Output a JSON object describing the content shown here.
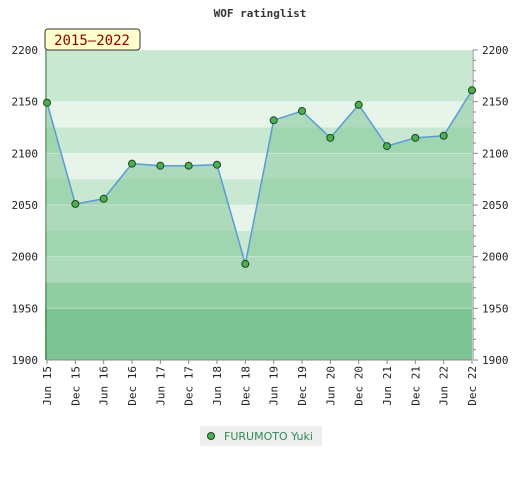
{
  "chart_data": {
    "type": "line",
    "title": "WOF ratinglist",
    "period_badge": "2015–2022",
    "categories": [
      "Jun 15",
      "Dec 15",
      "Jun 16",
      "Dec 16",
      "Jun 17",
      "Dec 17",
      "Jun 18",
      "Dec 18",
      "Jun 19",
      "Dec 19",
      "Jun 20",
      "Dec 20",
      "Jun 21",
      "Dec 21",
      "Jun 22",
      "Dec 22"
    ],
    "series": [
      {
        "name": "FURUMOTO Yuki",
        "values": [
          2149,
          2051,
          2056,
          2090,
          2088,
          2088,
          2089,
          1993,
          2132,
          2141,
          2115,
          2147,
          2107,
          2115,
          2117,
          2161
        ],
        "color": "#5a9bd5",
        "marker_color": "#4caf50"
      }
    ],
    "ylim": [
      1900,
      2200
    ],
    "yticks": [
      1900,
      1950,
      2000,
      2050,
      2100,
      2150,
      2200
    ],
    "ylabel_left": "",
    "ylabel_right": "",
    "legend_position": "bottom-center",
    "grid": true,
    "colors": {
      "band_dark": "#7cc494",
      "band_mid": "#a8d9b4",
      "band_light": "#c9e8d1",
      "band_pale": "#e6f4e9",
      "badge_bg": "#ffffcc",
      "badge_text": "#8b0000",
      "legend_text": "#2e8b57"
    }
  }
}
